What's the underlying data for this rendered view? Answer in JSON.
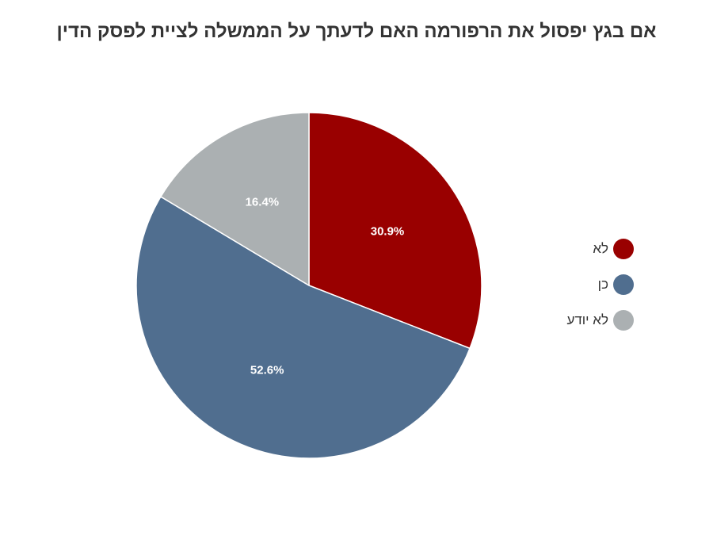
{
  "chart_data": {
    "type": "pie",
    "title": "אם בגץ יפסול את הרפורמה האם לדעתך על הממשלה לציית לפסק הדין",
    "slices": [
      {
        "label": "לא",
        "value": 30.9,
        "value_label": "30.9%",
        "color": "#990000"
      },
      {
        "label": "כן",
        "value": 52.6,
        "value_label": "52.6%",
        "color": "#506e8f"
      },
      {
        "label": "לא יודע",
        "value": 16.4,
        "value_label": "16.4%",
        "color": "#abb0b2"
      }
    ],
    "start_angle": "12 o'clock",
    "direction": "clockwise",
    "legend_position": "right"
  }
}
